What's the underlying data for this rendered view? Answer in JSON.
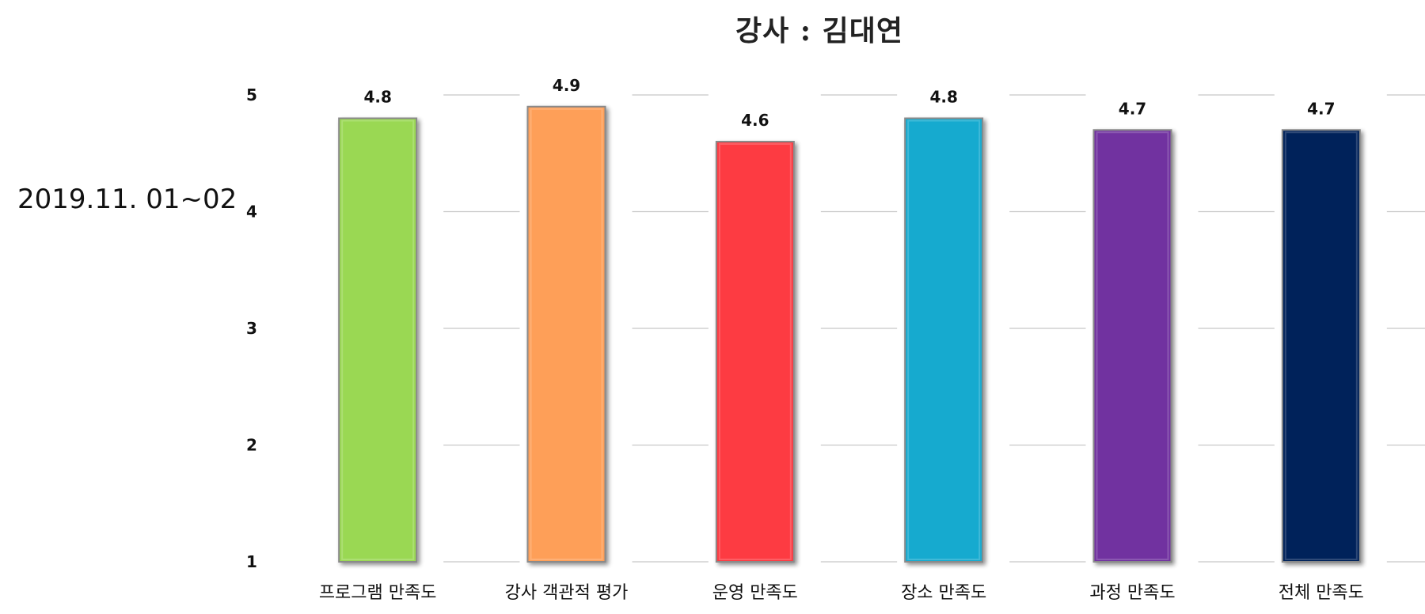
{
  "date_text": "2019.11. 01~02",
  "chart_data": {
    "type": "bar",
    "title": "강사 : 김대연",
    "categories": [
      "프로그램 만족도",
      "강사 객관적 평가",
      "운영 만족도",
      "장소 만족도",
      "과정 만족도",
      "전체 만족도"
    ],
    "values": [
      4.8,
      4.9,
      4.6,
      4.8,
      4.7,
      4.7
    ],
    "value_labels": [
      "4.8",
      "4.9",
      "4.6",
      "4.8",
      "4.7",
      "4.7"
    ],
    "colors": [
      "#9ad853",
      "#fe9f59",
      "#fd3a43",
      "#17aacf",
      "#7131a0",
      "#01215a"
    ],
    "ylim": [
      1,
      5
    ],
    "yticks": [
      1,
      2,
      3,
      4,
      5
    ],
    "xlabel": "",
    "ylabel": "",
    "grid": true,
    "legend": "none"
  }
}
